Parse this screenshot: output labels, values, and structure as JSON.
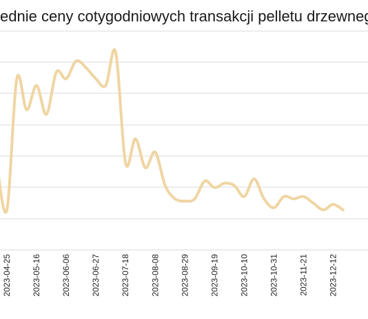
{
  "chart_data": {
    "type": "line",
    "title": "Średnie ceny cotygodniowych transakcji pelletu drzewnego (SPOT) (E",
    "xlabel": "",
    "ylabel": "",
    "grid": true,
    "x_tick_labels": [
      "2023-04-25",
      "2023-05-16",
      "2023-06-06",
      "2023-06-27",
      "2023-07-18",
      "2023-08-08",
      "2023-08-29",
      "2023-09-19",
      "2023-10-10",
      "2023-10-31",
      "2023-11-21",
      "2023-12-12"
    ],
    "x": [
      "2023-04-18",
      "2023-04-25",
      "2023-05-02",
      "2023-05-09",
      "2023-05-16",
      "2023-05-23",
      "2023-05-30",
      "2023-06-06",
      "2023-06-13",
      "2023-06-20",
      "2023-06-27",
      "2023-07-04",
      "2023-07-11",
      "2023-07-18",
      "2023-07-25",
      "2023-08-01",
      "2023-08-08",
      "2023-08-15",
      "2023-08-22",
      "2023-08-29",
      "2023-09-05",
      "2023-09-12",
      "2023-09-19",
      "2023-09-26",
      "2023-10-03",
      "2023-10-10",
      "2023-10-17",
      "2023-10-24",
      "2023-10-31",
      "2023-11-07",
      "2023-11-14",
      "2023-11-21",
      "2023-11-28",
      "2023-12-05",
      "2023-12-12",
      "2023-12-19"
    ],
    "series": [
      {
        "values": [
          3.0,
          1.0,
          6.9,
          5.5,
          6.6,
          5.3,
          7.2,
          6.9,
          7.7,
          7.4,
          6.9,
          6.6,
          8.1,
          3.1,
          4.2,
          2.9,
          3.6,
          2.1,
          1.5,
          1.4,
          1.5,
          2.3,
          2.0,
          2.2,
          2.1,
          1.6,
          2.4,
          1.5,
          1.1,
          1.6,
          1.5,
          1.6,
          1.3,
          1.0,
          1.25,
          1.0
        ]
      }
    ],
    "ylim": [
      -0.8,
      9.2
    ],
    "colors": {
      "line": "#f0d5a2",
      "grid": "#d9d9d9",
      "text": "#222222"
    }
  }
}
